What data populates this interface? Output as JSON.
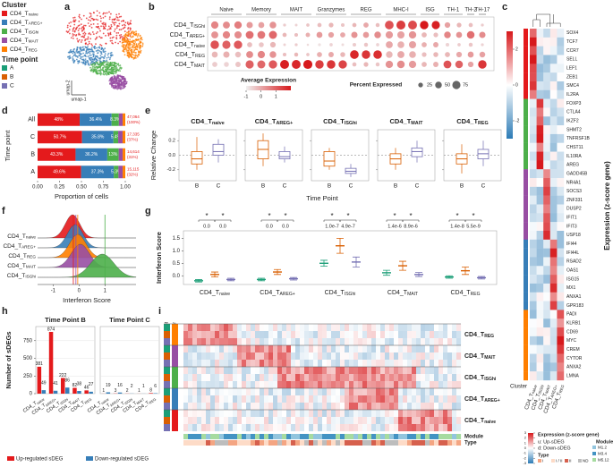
{
  "panel_labels": [
    "a",
    "b",
    "c",
    "d",
    "e",
    "f",
    "g",
    "h",
    "i"
  ],
  "clusters": [
    {
      "main": "CD4_T",
      "sub": "naive",
      "color": "#e41a1c"
    },
    {
      "main": "CD4_T",
      "sub": "AREG+",
      "color": "#377eb8"
    },
    {
      "main": "CD4_T",
      "sub": "ISGhi",
      "color": "#4daf4a"
    },
    {
      "main": "CD4_T",
      "sub": "MAIT",
      "color": "#984ea3"
    },
    {
      "main": "CD4_T",
      "sub": "REG",
      "color": "#ff7f00"
    }
  ],
  "time_points": [
    {
      "name": "A",
      "color": "#1b9e77"
    },
    {
      "name": "B",
      "color": "#d95f02"
    },
    {
      "name": "C",
      "color": "#7570b3"
    }
  ],
  "chart_data": [
    {
      "type": "umap",
      "cluster_title": "Cluster",
      "time_title": "Time point",
      "xlabel": "umap-1",
      "ylabel": "umap-2"
    },
    {
      "type": "dotplot",
      "rows": [
        {
          "main": "CD4_T",
          "sub": "ISGhi"
        },
        {
          "main": "CD4_T",
          "sub": "AREG+"
        },
        {
          "main": "CD4_T",
          "sub": "naive"
        },
        {
          "main": "CD4_T",
          "sub": "REG"
        },
        {
          "main": "CD4_T",
          "sub": "MAIT"
        }
      ],
      "groups": [
        {
          "name": "Naive",
          "columns": [
            0,
            2
          ]
        },
        {
          "name": "Memory",
          "columns": [
            3,
            5
          ]
        },
        {
          "name": "MAIT",
          "columns": [
            6,
            8
          ]
        },
        {
          "name": "Granzymes",
          "columns": [
            9,
            11
          ]
        },
        {
          "name": "REG",
          "columns": [
            12,
            14
          ]
        },
        {
          "name": "MHC-I",
          "columns": [
            15,
            17
          ]
        },
        {
          "name": "ISG",
          "columns": [
            18,
            19
          ]
        },
        {
          "name": "TH-1",
          "columns": [
            20,
            21
          ]
        },
        {
          "name": "TH-2",
          "columns": [
            22,
            22
          ]
        },
        {
          "name": "TH-17",
          "columns": [
            23,
            23
          ]
        }
      ],
      "avg_expression": [
        [
          0.5,
          0.4,
          0.6,
          0.2,
          0.1,
          0.3,
          -0.5,
          -0.6,
          -0.4,
          -0.3,
          -0.2,
          -0.4,
          -0.2,
          0.0,
          -0.3,
          1.2,
          1.5,
          1.3,
          2.0,
          1.9,
          0.1,
          -0.2,
          -0.3,
          -0.5
        ],
        [
          0.3,
          0.5,
          0.4,
          0.8,
          0.7,
          0.9,
          -0.2,
          -0.3,
          -0.1,
          0.2,
          0.1,
          0.0,
          0.3,
          0.2,
          0.4,
          0.2,
          0.1,
          0.3,
          -0.2,
          -0.3,
          0.5,
          0.3,
          0.8,
          0.4
        ],
        [
          1.2,
          1.0,
          1.1,
          -0.3,
          -0.4,
          -0.2,
          -0.6,
          -0.5,
          -0.7,
          -0.8,
          -0.6,
          -0.7,
          -0.5,
          -0.4,
          -0.6,
          0.0,
          -0.1,
          0.1,
          -0.1,
          0.0,
          -0.6,
          -0.5,
          -0.4,
          -0.6
        ],
        [
          -0.2,
          -0.1,
          -0.3,
          0.4,
          0.5,
          0.3,
          -0.3,
          -0.2,
          -0.4,
          -0.1,
          0.0,
          -0.2,
          1.8,
          1.6,
          1.7,
          -0.2,
          0.0,
          -0.1,
          -0.3,
          -0.2,
          -0.2,
          0.0,
          0.2,
          0.1
        ],
        [
          -0.5,
          -0.6,
          -0.4,
          1.0,
          0.9,
          1.1,
          1.9,
          1.8,
          2.0,
          1.5,
          1.6,
          1.4,
          -0.3,
          -0.2,
          -0.4,
          0.3,
          0.4,
          0.2,
          -0.2,
          -0.1,
          1.2,
          1.0,
          0.1,
          1.6
        ]
      ],
      "pct_expressed": [
        [
          60,
          55,
          62,
          45,
          40,
          50,
          10,
          8,
          12,
          20,
          25,
          15,
          20,
          30,
          18,
          85,
          90,
          88,
          80,
          75,
          35,
          25,
          20,
          10
        ],
        [
          55,
          60,
          58,
          70,
          68,
          72,
          20,
          15,
          22,
          40,
          35,
          30,
          45,
          40,
          50,
          60,
          58,
          62,
          30,
          25,
          50,
          40,
          65,
          45
        ],
        [
          80,
          75,
          78,
          30,
          28,
          35,
          8,
          10,
          6,
          10,
          12,
          8,
          15,
          18,
          12,
          55,
          52,
          58,
          30,
          32,
          15,
          12,
          18,
          10
        ],
        [
          40,
          45,
          38,
          55,
          60,
          50,
          15,
          18,
          12,
          30,
          32,
          28,
          85,
          80,
          82,
          50,
          55,
          52,
          25,
          28,
          30,
          35,
          40,
          38
        ],
        [
          30,
          28,
          32,
          75,
          72,
          78,
          90,
          88,
          92,
          80,
          82,
          78,
          20,
          25,
          18,
          62,
          65,
          60,
          30,
          32,
          70,
          65,
          35,
          80
        ]
      ],
      "avg_title": "Average Expression",
      "avg_lim": [
        -1,
        2
      ],
      "avg_ticks": [
        -1,
        0,
        1
      ],
      "pct_title": "Percent Expressed",
      "pct_lim": [
        0,
        90
      ],
      "pct_ticks": [
        25,
        50,
        75
      ]
    },
    {
      "type": "heatmap_genes",
      "colorbar_title": "Expression (z-score gene)",
      "colorbar_lim": [
        -3,
        3
      ],
      "colorbar_ticks": [
        2,
        0,
        -2
      ],
      "column_label": "Cluster",
      "columns": [
        {
          "main": "CD4_T",
          "sub": "naive"
        },
        {
          "main": "CD4_T",
          "sub": "ISGhi"
        },
        {
          "main": "CD4_T",
          "sub": "MAIT"
        },
        {
          "main": "CD4_T",
          "sub": "AREG+"
        },
        {
          "main": "CD4_T",
          "sub": "REG"
        }
      ],
      "genes": [
        "SOX4",
        "TCF7",
        "CCR7",
        "SELL",
        "LEF1",
        "ZEB1",
        "SMC4",
        "IL2RA",
        "FOXP3",
        "CTLA4",
        "IKZF2",
        "SHMT2",
        "TNFRSF1B",
        "CHST11",
        "IL10RA",
        "AREG",
        "GADD45B",
        "NR4A1",
        "SOCS3",
        "ZNF331",
        "DUSP2",
        "IFIT1",
        "IFIT3",
        "USP18",
        "IFI44",
        "IFI44L",
        "RSAD2",
        "OAS1",
        "ISG15",
        "MX1",
        "ANXA1",
        "GPR183",
        "PADI",
        "KLRB1",
        "CD69",
        "MYC",
        "CREM",
        "CYTOR",
        "ANXA2",
        "LMNA"
      ]
    },
    {
      "type": "barh_stacked",
      "categories": [
        "All",
        "C",
        "B",
        "A"
      ],
      "ylabel": "Time point",
      "xlabel": "Proportion of cells",
      "xlim": [
        0,
        1
      ],
      "xticks": [
        {
          "value": 0,
          "label": "0.00"
        },
        {
          "value": 0.25,
          "label": "0.25"
        },
        {
          "value": 0.5,
          "label": "0.50"
        },
        {
          "value": 0.75,
          "label": "0.75"
        },
        {
          "value": 1,
          "label": "1.00"
        }
      ],
      "series": [
        {
          "color": "#e41a1c",
          "values": [
            0.48,
            0.507,
            0.433,
            0.496
          ],
          "value_labels": [
            "48%",
            "50.7%",
            "43.3%",
            "49.6%"
          ]
        },
        {
          "color": "#377eb8",
          "values": [
            0.364,
            0.358,
            0.362,
            0.373
          ],
          "value_labels": [
            "36.4%",
            "35.8%",
            "36.2%",
            "37.3%"
          ]
        },
        {
          "color": "#4daf4a",
          "values": [
            0.083,
            0.054,
            0.13,
            0.053
          ],
          "value_labels": [
            "8.3%",
            "5.4%",
            "13%",
            "5.3%"
          ]
        },
        {
          "color": "#984ea3",
          "values": [
            0.043,
            0.05,
            0.045,
            0.048
          ],
          "value_labels": [
            null,
            null,
            null,
            null
          ]
        },
        {
          "color": "#ff7f00",
          "values": [
            0.03,
            0.031,
            0.03,
            0.03
          ],
          "value_labels": [
            null,
            null,
            null,
            null
          ]
        }
      ],
      "row_totals": [
        {
          "count": "47,064",
          "share": "(100%)"
        },
        {
          "count": "17,335",
          "share": "(37%)"
        },
        {
          "count": "14,614",
          "share": "(31%)"
        },
        {
          "count": "15,115",
          "share": "(32%)"
        }
      ]
    },
    {
      "type": "box",
      "ylabel": "Relative Change",
      "xlabel": "Time Point",
      "groups": [
        "B",
        "C"
      ],
      "ylim": [
        -0.35,
        0.35
      ],
      "yticks": [
        -0.2,
        {
          "value": 0,
          "label": "0.0"
        },
        0.2
      ],
      "panels": [
        {
          "title": {
            "main": "CD4_T",
            "sub": "naive"
          },
          "boxes": [
            [
              -0.2,
              -0.12,
              -0.05,
              0.05,
              0.25
            ],
            [
              -0.1,
              0.0,
              0.05,
              0.15,
              0.22
            ]
          ]
        },
        {
          "title": {
            "main": "CD4_T",
            "sub": "AREG+"
          },
          "boxes": [
            [
              -0.15,
              -0.05,
              0.08,
              0.2,
              0.3
            ],
            [
              -0.1,
              -0.05,
              -0.02,
              0.05,
              0.12
            ]
          ]
        },
        {
          "title": {
            "main": "CD4_T",
            "sub": "ISGhi"
          },
          "boxes": [
            [
              -0.2,
              -0.15,
              -0.08,
              0.05,
              0.1
            ],
            [
              -0.3,
              -0.25,
              -0.22,
              -0.18,
              -0.12
            ]
          ]
        },
        {
          "title": {
            "main": "CD4_T",
            "sub": "MAIT"
          },
          "boxes": [
            [
              -0.2,
              -0.12,
              -0.05,
              0.02,
              0.1
            ],
            [
              -0.1,
              -0.02,
              0.05,
              0.1,
              0.2
            ]
          ]
        },
        {
          "title": {
            "main": "CD4_T",
            "sub": "REG"
          },
          "boxes": [
            [
              -0.25,
              -0.12,
              -0.05,
              0.02,
              0.15
            ],
            [
              -0.15,
              -0.05,
              0.02,
              0.08,
              0.2
            ]
          ]
        }
      ]
    },
    {
      "type": "ridge",
      "xlabel": "Interferon Score",
      "xlim": [
        -1.6,
        2.2
      ],
      "xticks": [
        -1,
        0,
        1
      ],
      "ridges": [
        {
          "label": {
            "main": "CD4_T",
            "sub": "naive"
          },
          "color": "#e41a1c",
          "mean": -0.25,
          "sd": 0.28
        },
        {
          "label": {
            "main": "CD4_T",
            "sub": "AREG+"
          },
          "color": "#377eb8",
          "mean": -0.15,
          "sd": 0.3
        },
        {
          "label": {
            "main": "CD4_T",
            "sub": "REG"
          },
          "color": "#ff7f00",
          "mean": -0.05,
          "sd": 0.32
        },
        {
          "label": {
            "main": "CD4_T",
            "sub": "MAIT"
          },
          "color": "#984ea3",
          "mean": 0.05,
          "sd": 0.35
        },
        {
          "label": {
            "main": "CD4_T",
            "sub": "ISGhi"
          },
          "color": "#4daf4a",
          "mean": 0.9,
          "sd": 0.45
        }
      ],
      "lines": [
        {
          "value": -0.22,
          "color": "#e41a1c"
        },
        {
          "value": -0.12,
          "color": "#984ea3"
        },
        {
          "value": -0.05,
          "color": "#ff7f00"
        },
        {
          "value": 1.0,
          "color": "#4daf4a"
        }
      ]
    },
    {
      "type": "pointrange",
      "ylabel": "Interferon Score",
      "ylim": [
        -0.35,
        1.8
      ],
      "yticks": [
        {
          "value": 0,
          "label": "0.0"
        },
        {
          "value": 0.5,
          "label": "0.5"
        },
        {
          "value": 1,
          "label": "1.0"
        },
        {
          "value": 1.5,
          "label": "1.5"
        }
      ],
      "categories": [
        {
          "main": "CD4_T",
          "sub": "naive"
        },
        {
          "main": "CD4_T",
          "sub": "AREG+"
        },
        {
          "main": "CD4_T",
          "sub": "ISGhi"
        },
        {
          "main": "CD4_T",
          "sub": "MAIT"
        },
        {
          "main": "CD4_T",
          "sub": "REG"
        }
      ],
      "series": [
        {
          "color": "#1b9e77",
          "values": [
            -0.2,
            -0.15,
            0.5,
            0.12,
            -0.05
          ],
          "errors": [
            0.05,
            0.05,
            0.12,
            0.1,
            0.05
          ]
        },
        {
          "color": "#d95f02",
          "values": [
            0.05,
            0.15,
            1.2,
            0.4,
            0.2
          ],
          "errors": [
            0.1,
            0.1,
            0.3,
            0.18,
            0.15
          ]
        },
        {
          "color": "#7570b3",
          "values": [
            -0.15,
            -0.12,
            0.55,
            0.05,
            -0.08
          ],
          "errors": [
            0.05,
            0.05,
            0.2,
            0.08,
            0.05
          ]
        }
      ],
      "star": "*",
      "p_labels": [
        [
          "0.0",
          "0.0"
        ],
        [
          "0.0",
          "0.0"
        ],
        [
          "1.0e-7",
          "4.9e-7"
        ],
        [
          "1.4e-6",
          "8.9e-6"
        ],
        [
          "1.4e-8",
          "5.5e-9"
        ]
      ]
    },
    {
      "type": "bar",
      "ylabel": "Number of sDEGs",
      "ylim": [
        0,
        950
      ],
      "yticks": [
        0,
        250,
        500,
        750
      ],
      "categories": [
        {
          "main": "CD4_T",
          "sub": "naive"
        },
        {
          "main": "CD4_T",
          "sub": "AREG+"
        },
        {
          "main": "CD4_T",
          "sub": "ISGhi"
        },
        {
          "main": "CD4_T",
          "sub": "MAIT"
        },
        {
          "main": "CD4_T",
          "sub": "REG"
        }
      ],
      "legend": [
        {
          "name": "Up-regulated sDEG",
          "color": "#e41a1c"
        },
        {
          "name": "Down-regulated sDEG",
          "color": "#377eb8"
        }
      ],
      "panels": [
        {
          "title": "Time Point B",
          "series": [
            {
              "values": [
                381,
                874,
                222,
                82,
                46
              ]
            },
            {
              "values": [
                49,
                41,
                86,
                38,
                27
              ]
            }
          ]
        },
        {
          "title": "Time Point C",
          "series": [
            {
              "values": [
                1,
                3,
                2,
                1,
                8
              ]
            },
            {
              "values": [
                19,
                16,
                2,
                1,
                6
              ]
            }
          ]
        }
      ]
    },
    {
      "type": "heatmap_degs",
      "row_label_time": "TimePoint",
      "row_label_cluster": "Cluster",
      "module_label": "Module",
      "type_label": "Type",
      "rows": [
        {
          "main": "CD4_T",
          "sub": "REG"
        },
        {
          "main": "CD4_T",
          "sub": "MAIT"
        },
        {
          "main": "CD4_T",
          "sub": "ISGhi"
        },
        {
          "main": "CD4_T",
          "sub": "AREG+"
        },
        {
          "main": "CD4_T",
          "sub": "naive"
        }
      ],
      "colorbar_title": "Expression (z-score gene)",
      "colorbar_lim": [
        -3,
        3
      ],
      "colorbar_ticks": [
        3,
        2,
        1,
        0,
        -1,
        -2,
        -3
      ],
      "up_note": "u: Up-sDEG",
      "down_note": "d: Down-sDEG",
      "type_title": "Type",
      "types": [
        {
          "name": "I",
          "color": "#f4a582"
        },
        {
          "name": "I / II",
          "color": "#fddbc7"
        },
        {
          "name": "II",
          "color": "#d6604d"
        },
        {
          "name": "ND",
          "color": "#bdbdbd"
        }
      ],
      "module_title": "Module",
      "modules": [
        {
          "name": "M1.2",
          "color": "#92c5de"
        },
        {
          "name": "M3.4",
          "color": "#4393c3"
        },
        {
          "name": "M5.12",
          "color": "#a6dba0"
        }
      ]
    }
  ]
}
